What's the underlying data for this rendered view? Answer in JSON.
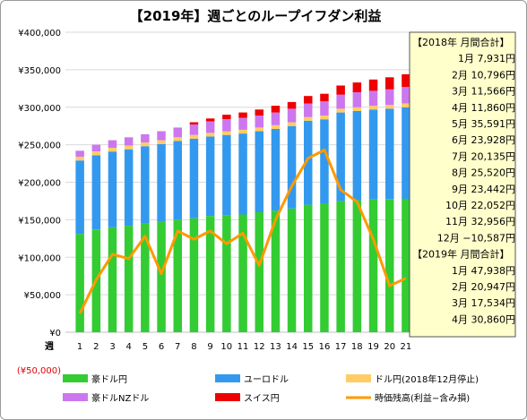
{
  "chart_data": {
    "type": "bar",
    "title": "【2019年】週ごとのループイフダン利益",
    "x_axis_label": "週",
    "categories": [
      "1",
      "2",
      "3",
      "4",
      "5",
      "6",
      "7",
      "8",
      "9",
      "10",
      "11",
      "12",
      "13",
      "14",
      "15",
      "16",
      "17",
      "18",
      "19",
      "20",
      "21"
    ],
    "y_tick_labels": [
      "¥400,000",
      "¥350,000",
      "¥300,000",
      "¥250,000",
      "¥200,000",
      "¥150,000",
      "¥100,000",
      "¥50,000",
      "¥0",
      "(¥50,000)"
    ],
    "ylim": [
      -50000,
      400000
    ],
    "grid": true,
    "series": [
      {
        "name": "豪ドル円",
        "type": "bar",
        "color": "#33cc33",
        "values": [
          131000,
          137000,
          140000,
          142000,
          145000,
          147000,
          150000,
          152000,
          155000,
          156000,
          157000,
          160000,
          162000,
          165000,
          170000,
          172000,
          175000,
          176000,
          177000,
          177000,
          178000
        ]
      },
      {
        "name": "ユーロドル",
        "type": "bar",
        "color": "#3399ee",
        "values": [
          98000,
          99000,
          101000,
          102000,
          103000,
          104000,
          105000,
          106000,
          106000,
          107000,
          108000,
          108000,
          109000,
          110000,
          112000,
          112000,
          118000,
          119000,
          120000,
          121000,
          122000
        ]
      },
      {
        "name": "ドル円(2018年12月停止)",
        "type": "bar",
        "color": "#ffcc66",
        "values": [
          5000,
          5000,
          5000,
          5000,
          5000,
          5000,
          5000,
          5000,
          5000,
          5000,
          5000,
          5000,
          5000,
          5000,
          5000,
          5000,
          5000,
          5000,
          5000,
          5000,
          5000
        ]
      },
      {
        "name": "豪ドルNZドル",
        "type": "bar",
        "color": "#cc77ee",
        "values": [
          8000,
          9000,
          10000,
          11000,
          11000,
          12000,
          13000,
          14000,
          15000,
          16000,
          16000,
          16000,
          17000,
          18000,
          18000,
          19000,
          19000,
          20000,
          20000,
          21000,
          22000
        ]
      },
      {
        "name": "スイス円",
        "type": "bar",
        "color": "#ee0000",
        "values": [
          0,
          0,
          0,
          0,
          0,
          0,
          0,
          3000,
          4000,
          6000,
          7000,
          8000,
          9000,
          9000,
          10000,
          10000,
          12000,
          13000,
          15000,
          16000,
          17000
        ]
      },
      {
        "name": "時価残高(利益−含み損)",
        "type": "line",
        "color": "#ff9900",
        "values": [
          25000,
          70000,
          104000,
          98000,
          128000,
          78000,
          135000,
          124000,
          135000,
          118000,
          132000,
          89000,
          150000,
          195000,
          232000,
          243000,
          190000,
          174000,
          124000,
          62000,
          72000
        ]
      }
    ]
  },
  "side_panel": {
    "header_2018": "【2018年 月間合計】",
    "rows_2018": [
      "1月 7,931円",
      "2月 10,796円",
      "3月 11,566円",
      "4月 11,860円",
      "5月 35,591円",
      "6月 23,928円",
      "7月 20,135円",
      "8月 25,520円",
      "9月 23,442円",
      "10月 22,052円",
      "11月 32,956円",
      "12月 −10,587円"
    ],
    "header_2019": "【2019年 月間合計】",
    "rows_2019": [
      "1月 47,938円",
      "2月 20,947円",
      "3月 17,534円",
      "4月 30,860円"
    ]
  }
}
